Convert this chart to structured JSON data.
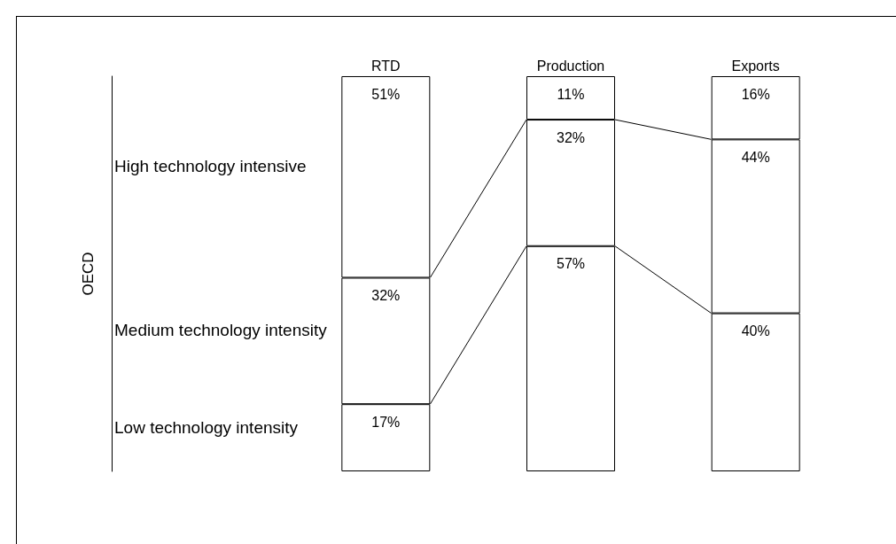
{
  "chart_data": {
    "type": "bar",
    "stacked": true,
    "annotations": [
      "OECD"
    ],
    "categories": [
      "RTD",
      "Production",
      "Exports"
    ],
    "legend": false,
    "series": [
      {
        "name": "Low technology intensity",
        "color": "#ffffff",
        "values": [
          17,
          57,
          40
        ],
        "value_labels": [
          "17%",
          "57%",
          "40%"
        ]
      },
      {
        "name": "Medium technology intensity",
        "color": "#ffffff",
        "values": [
          32,
          32,
          44
        ],
        "value_labels": [
          "32%",
          "32%",
          "44%"
        ]
      },
      {
        "name": "High technology intensive",
        "color": "#ffffff",
        "values": [
          51,
          11,
          16
        ],
        "value_labels": [
          "51%",
          "11%",
          "16%"
        ]
      }
    ]
  }
}
